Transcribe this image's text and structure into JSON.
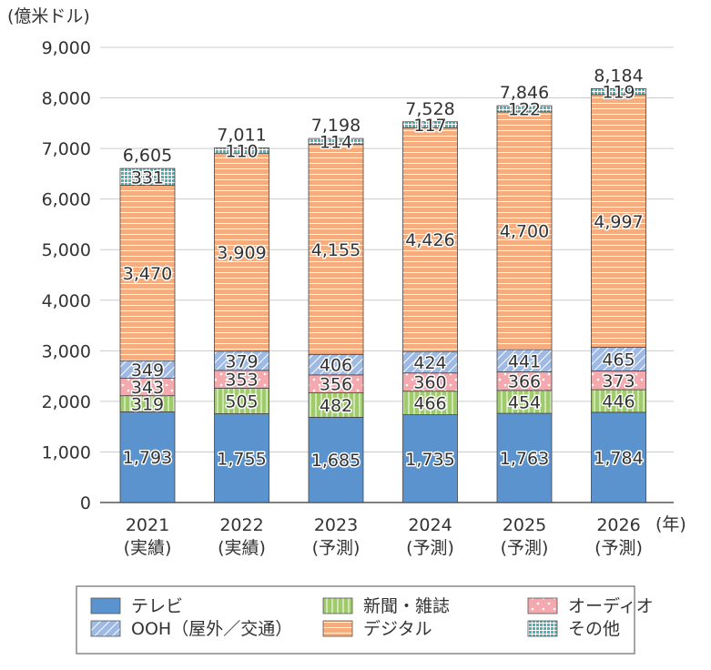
{
  "chart_data": {
    "type": "bar",
    "stacked": true,
    "ylabel": "(億米ドル)",
    "xlabel": "(年)",
    "ylim": [
      0,
      9000
    ],
    "yticks": [
      "0",
      "1,000",
      "2,000",
      "3,000",
      "4,000",
      "5,000",
      "6,000",
      "7,000",
      "8,000",
      "9,000"
    ],
    "grid": true,
    "categories": [
      "2021",
      "2022",
      "2023",
      "2024",
      "2025",
      "2026"
    ],
    "category_notes": [
      "(実績)",
      "(実績)",
      "(予測)",
      "(予測)",
      "(予測)",
      "(予測)"
    ],
    "totals": [
      "6,605",
      "7,011",
      "7,198",
      "7,528",
      "7,846",
      "8,184"
    ],
    "series": [
      {
        "name": "テレビ",
        "color": "#5b93cf",
        "pattern": "solid",
        "values": [
          1793,
          1755,
          1685,
          1735,
          1763,
          1784
        ]
      },
      {
        "name": "新聞・雑誌",
        "color": "#9fcb6a",
        "pattern": "vertical",
        "values": [
          319,
          505,
          482,
          466,
          454,
          446
        ]
      },
      {
        "name": "オーディオ",
        "color": "#f4a9ae",
        "pattern": "dots",
        "values": [
          343,
          353,
          356,
          360,
          366,
          373
        ]
      },
      {
        "name": "OOH(屋外/交通)",
        "color": "#9db9e4",
        "pattern": "diagonal",
        "values": [
          349,
          379,
          406,
          424,
          441,
          465
        ]
      },
      {
        "name": "デジタル",
        "color": "#f5ad7f",
        "pattern": "horizontal",
        "values": [
          3470,
          3909,
          4155,
          4426,
          4700,
          4997
        ]
      },
      {
        "name": "その他",
        "color": "#3fb7bd",
        "pattern": "grid",
        "values": [
          331,
          110,
          114,
          117,
          122,
          119
        ]
      }
    ],
    "legend_placement": "bottom",
    "legend": [
      "テレビ",
      "新聞・雑誌",
      "オーディオ",
      "OOH（屋外／交通）",
      "デジタル",
      "その他"
    ]
  }
}
